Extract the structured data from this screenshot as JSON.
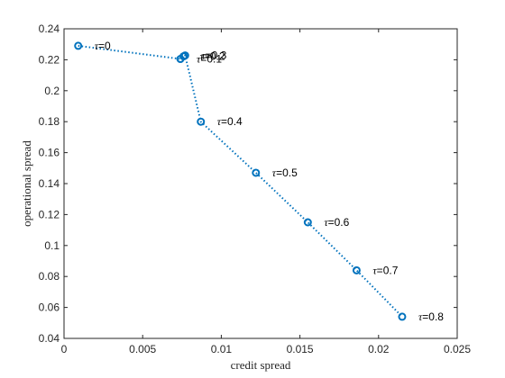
{
  "chart_data": {
    "type": "line",
    "title": "",
    "xlabel": "credit spread",
    "ylabel": "operational spread",
    "xlim": [
      0,
      0.025
    ],
    "ylim": [
      0.04,
      0.24
    ],
    "x_ticks": [
      0,
      0.005,
      0.01,
      0.015,
      0.02,
      0.025
    ],
    "x_tick_labels": [
      "0",
      "0.005",
      "0.01",
      "0.015",
      "0.02",
      "0.025"
    ],
    "y_ticks": [
      0.04,
      0.06,
      0.08,
      0.1,
      0.12,
      0.14,
      0.16,
      0.18,
      0.2,
      0.22,
      0.24
    ],
    "y_tick_labels": [
      "0.04",
      "0.06",
      "0.08",
      "0.1",
      "0.12",
      "0.14",
      "0.16",
      "0.18",
      "0.2",
      "0.22",
      "0.24"
    ],
    "grid": false,
    "legend": false,
    "series": [
      {
        "color": "#0072BD",
        "line_style": "dotted",
        "marker": "circle",
        "points": [
          {
            "x": 0.0009,
            "y": 0.229,
            "tau_label": "0"
          },
          {
            "x": 0.0074,
            "y": 0.2205,
            "tau_label": "0.1"
          },
          {
            "x": 0.0076,
            "y": 0.2222,
            "tau_label": "0.2"
          },
          {
            "x": 0.0077,
            "y": 0.2228,
            "tau_label": "0.3"
          },
          {
            "x": 0.0087,
            "y": 0.18,
            "tau_label": "0.4"
          },
          {
            "x": 0.0122,
            "y": 0.147,
            "tau_label": "0.5"
          },
          {
            "x": 0.0155,
            "y": 0.115,
            "tau_label": "0.6"
          },
          {
            "x": 0.0186,
            "y": 0.084,
            "tau_label": "0.7"
          },
          {
            "x": 0.0215,
            "y": 0.054,
            "tau_label": "0.8"
          }
        ]
      }
    ]
  },
  "tau_symbol": "τ",
  "equals_sign": "="
}
